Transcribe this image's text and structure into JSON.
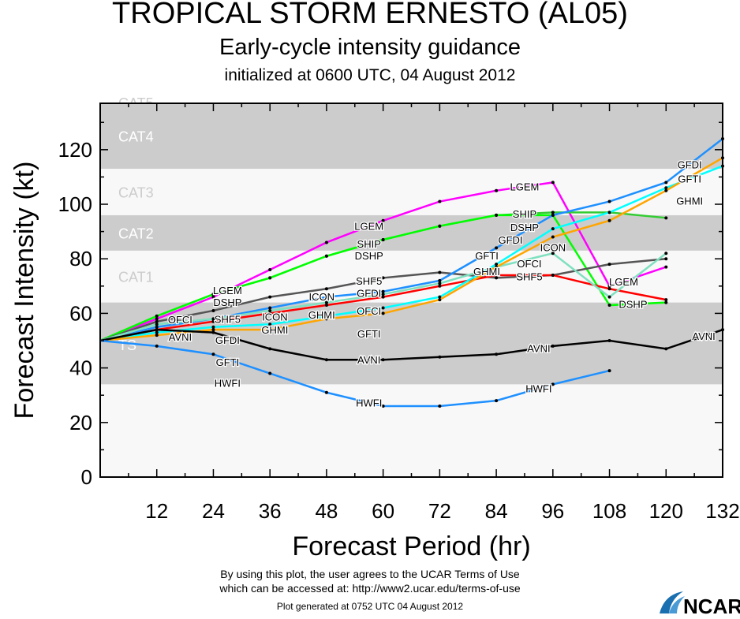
{
  "title": "TROPICAL STORM ERNESTO (AL05)",
  "subtitle": "Early-cycle intensity guidance",
  "initialized": "initialized at 0600 UTC, 04 August 2012",
  "footer": {
    "terms1": "By using this plot, the user agrees to the UCAR Terms of Use",
    "terms2": "which can be accessed at: http://www2.ucar.edu/terms-of-use",
    "generated": "Plot generated at 0752 UTC   04 August 2012",
    "logo": "NCAR"
  },
  "chart_data": {
    "type": "line",
    "xlabel": "Forecast Period (hr)",
    "ylabel": "Forecast Intensity (kt)",
    "xlim": [
      0,
      132
    ],
    "ylim": [
      0,
      137
    ],
    "xticks": [
      12,
      24,
      36,
      48,
      60,
      72,
      84,
      96,
      108,
      120,
      132
    ],
    "yticks": [
      0,
      20,
      40,
      60,
      80,
      100,
      120
    ],
    "bands": [
      {
        "name": "TS",
        "from": 34,
        "to": 64,
        "color": "#cccccc"
      },
      {
        "name": "CAT1",
        "from": 64,
        "to": 83,
        "color": "#f8f8f8"
      },
      {
        "name": "CAT2",
        "from": 83,
        "to": 96,
        "color": "#cccccc"
      },
      {
        "name": "CAT3",
        "from": 96,
        "to": 113,
        "color": "#f8f8f8"
      },
      {
        "name": "CAT4",
        "from": 113,
        "to": 137,
        "color": "#cccccc"
      },
      {
        "name": "CAT5",
        "from": 137,
        "to": 160,
        "color": "#f8f8f8"
      }
    ],
    "x": [
      0,
      12,
      24,
      36,
      48,
      60,
      72,
      84,
      96,
      108,
      120,
      132
    ],
    "series": [
      {
        "name": "LGEM",
        "color": "#ff00ff",
        "values": [
          50,
          58,
          66,
          76,
          86,
          94,
          101,
          105,
          108,
          70,
          77,
          null
        ]
      },
      {
        "name": "SHIP",
        "color": "#33cc33",
        "values": [
          50,
          59,
          67,
          73,
          81,
          87,
          92,
          96,
          97,
          97,
          95,
          null
        ]
      },
      {
        "name": "DSHP",
        "color": "#00ff00",
        "values": [
          50,
          59,
          67,
          73,
          81,
          87,
          92,
          96,
          96,
          63,
          64,
          null
        ]
      },
      {
        "name": "SHF5",
        "color": "#555555",
        "values": [
          50,
          57,
          61,
          66,
          69,
          73,
          75,
          73,
          74,
          78,
          80,
          null
        ]
      },
      {
        "name": "GFDI",
        "color": "#1e90ff",
        "values": [
          50,
          55,
          58,
          62,
          66,
          68,
          72,
          84,
          96,
          101,
          108,
          124
        ]
      },
      {
        "name": "OFCI",
        "color": "#ff0000",
        "values": [
          50,
          54,
          57,
          60,
          63,
          66,
          70,
          74,
          74,
          69,
          65,
          null
        ]
      },
      {
        "name": "ICON",
        "color": "#7fe0c0",
        "values": [
          50,
          56,
          58,
          61,
          64,
          67,
          71,
          77,
          82,
          66,
          82,
          null
        ]
      },
      {
        "name": "GFTI",
        "color": "#00ffff",
        "values": [
          50,
          53,
          55,
          56,
          59,
          62,
          66,
          78,
          91,
          97,
          106,
          114
        ]
      },
      {
        "name": "GHMI",
        "color": "#ffa500",
        "values": [
          50,
          52,
          54,
          54,
          58,
          60,
          65,
          77,
          88,
          94,
          105,
          117
        ]
      },
      {
        "name": "AVNI",
        "color": "#000000",
        "values": [
          50,
          54,
          53,
          47,
          43,
          43,
          44,
          45,
          48,
          50,
          47,
          54
        ]
      },
      {
        "name": "HWFI",
        "color": "#1e90ff",
        "values": [
          50,
          48,
          45,
          38,
          31,
          26,
          26,
          28,
          34,
          39,
          null,
          null
        ]
      }
    ]
  }
}
